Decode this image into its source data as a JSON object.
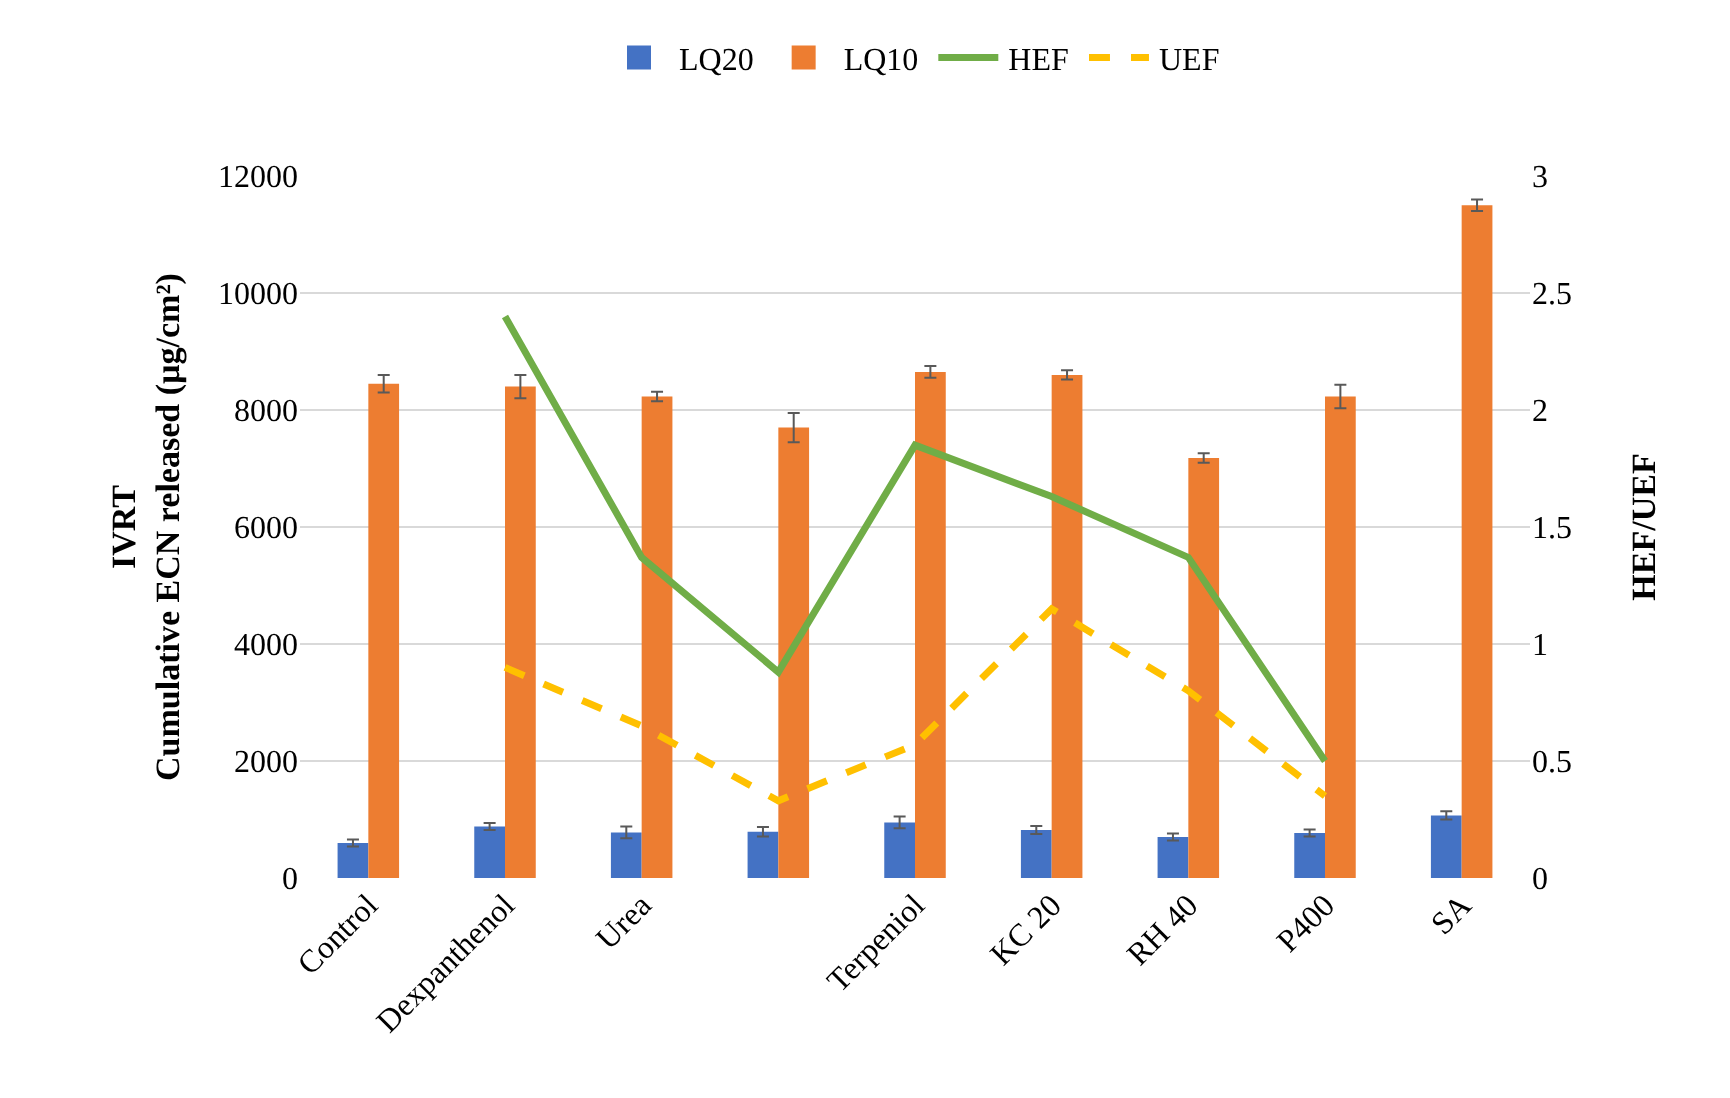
{
  "chart_data": {
    "type": "bar",
    "categories": [
      "Control",
      "Dexpanthenol",
      "Urea",
      null,
      "Terpeniol",
      "KC 20",
      "RH 40",
      "P400",
      "SA"
    ],
    "ylabel": "IVRT\nCumulative ECN released (µg/cm²)",
    "y2label": "HEF/UEF",
    "series": [
      {
        "name": "LQ20",
        "color": "#4472c4",
        "values": [
          600,
          880,
          780,
          790,
          950,
          820,
          700,
          770,
          1070
        ],
        "errors": [
          60,
          60,
          100,
          80,
          100,
          70,
          60,
          60,
          70
        ]
      },
      {
        "name": "LQ10",
        "color": "#ed7d31",
        "values": [
          8450,
          8400,
          8230,
          7700,
          8650,
          8600,
          7180,
          8230,
          11500
        ],
        "errors": [
          150,
          200,
          80,
          250,
          100,
          80,
          80,
          200,
          100
        ]
      },
      {
        "name": "HEF",
        "type": "line",
        "axis": "y2",
        "color": "#70ad47",
        "line_style": "solid",
        "values": [
          null,
          2.4,
          1.37,
          0.88,
          1.85,
          1.63,
          1.37,
          0.5,
          null
        ]
      },
      {
        "name": "UEF",
        "type": "line",
        "axis": "y2",
        "color": "#ffc000",
        "line_style": "dashed",
        "values": [
          null,
          0.9,
          0.65,
          0.33,
          0.57,
          1.15,
          0.8,
          0.35,
          null
        ]
      }
    ],
    "ylim": [
      0,
      12000
    ],
    "yticks": [
      0,
      2000,
      4000,
      6000,
      8000,
      10000,
      12000
    ],
    "y2lim": [
      0,
      3
    ],
    "y2ticks": [
      0,
      0.5,
      1,
      1.5,
      2,
      2.5,
      3
    ],
    "grid": "y",
    "legend": "top",
    "marker": "none"
  }
}
